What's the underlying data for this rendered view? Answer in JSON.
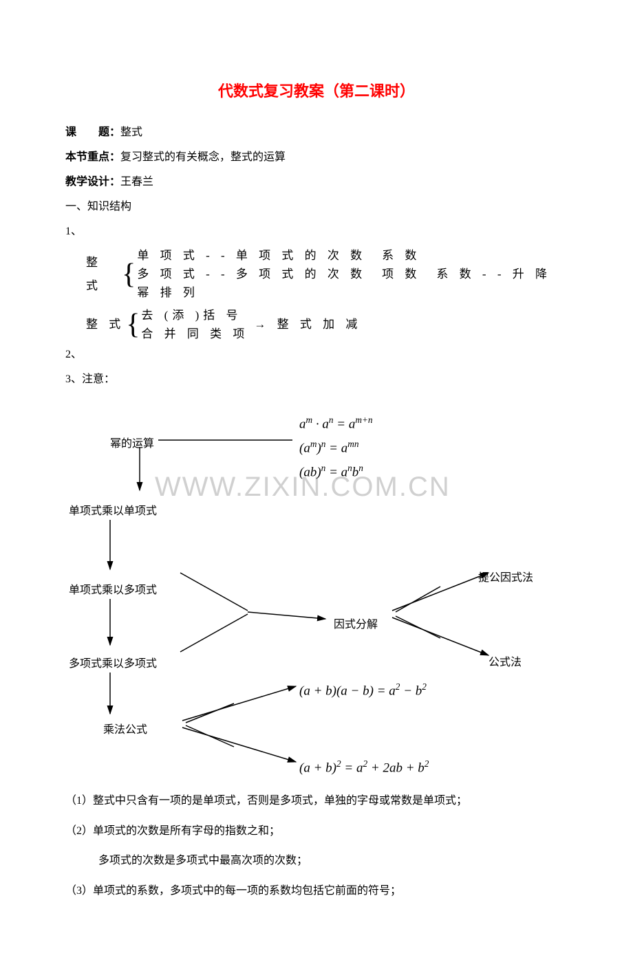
{
  "title": "代数式复习教案（第二课时）",
  "header": {
    "topic_label": "课　　题：",
    "topic_value": "整式",
    "focus_label": "本节重点：",
    "focus_value": "复习整式的有关概念，整式的运算",
    "designer_label": "教学设计：",
    "designer_value": "王春兰"
  },
  "section1_heading": "一、知识结构",
  "item1": "1、",
  "brace1": {
    "label": "整 式",
    "line1": "单 项 式 - - 单 项 式 的 次 数　系 数",
    "line2": "多 项 式 - - 多 项 式 的 次 数　项 数　系 数 - - 升 降 幂 排 列"
  },
  "item2": "2、",
  "brace2": {
    "label": "整 式",
    "line1": "去 (添 )括 号",
    "line2": "合 并 同 类 项",
    "arrow_target": "整 式 加 减"
  },
  "item3": "3、注意：",
  "diagram": {
    "exponent_label": "幂的运算",
    "mono_mono": "单项式乘以单项式",
    "mono_poly": "单项式乘以多项式",
    "poly_poly": "多项式乘以多项式",
    "mult_formula": "乘法公式",
    "factorization": "因式分解",
    "common_factor": "提公因式法",
    "formula_method": "公式法",
    "watermark": "WWW.ZIXIN.COM.CN"
  },
  "formulas": {
    "f1_html": "a<sup>m</sup> · a<sup>n</sup> = a<sup>m+n</sup>",
    "f2_html": "(a<sup>m</sup>)<sup>n</sup> = a<sup>mn</sup>",
    "f3_html": "(ab)<sup>n</sup> = a<sup>n</sup>b<sup>n</sup>",
    "f4_html": "(a + b)(a − b) = a<sup>2</sup> − b<sup>2</sup>",
    "f5_html": "(a + b)<sup>2</sup> = a<sup>2</sup> + 2ab + b<sup>2</sup>"
  },
  "notes": {
    "n1": "（1）整式中只含有一项的是单项式，否则是多项式，单独的字母或常数是单项式；",
    "n2": "（2）单项式的次数是所有字母的指数之和；",
    "n2b": "多项式的次数是多项式中最高次项的次数；",
    "n3": "（3）单项式的系数，多项式中的每一项的系数均包括它前面的符号；"
  },
  "colors": {
    "title": "#ff0000",
    "text": "#000000",
    "watermark": "#d0d0d0",
    "arrow": "#000000"
  }
}
